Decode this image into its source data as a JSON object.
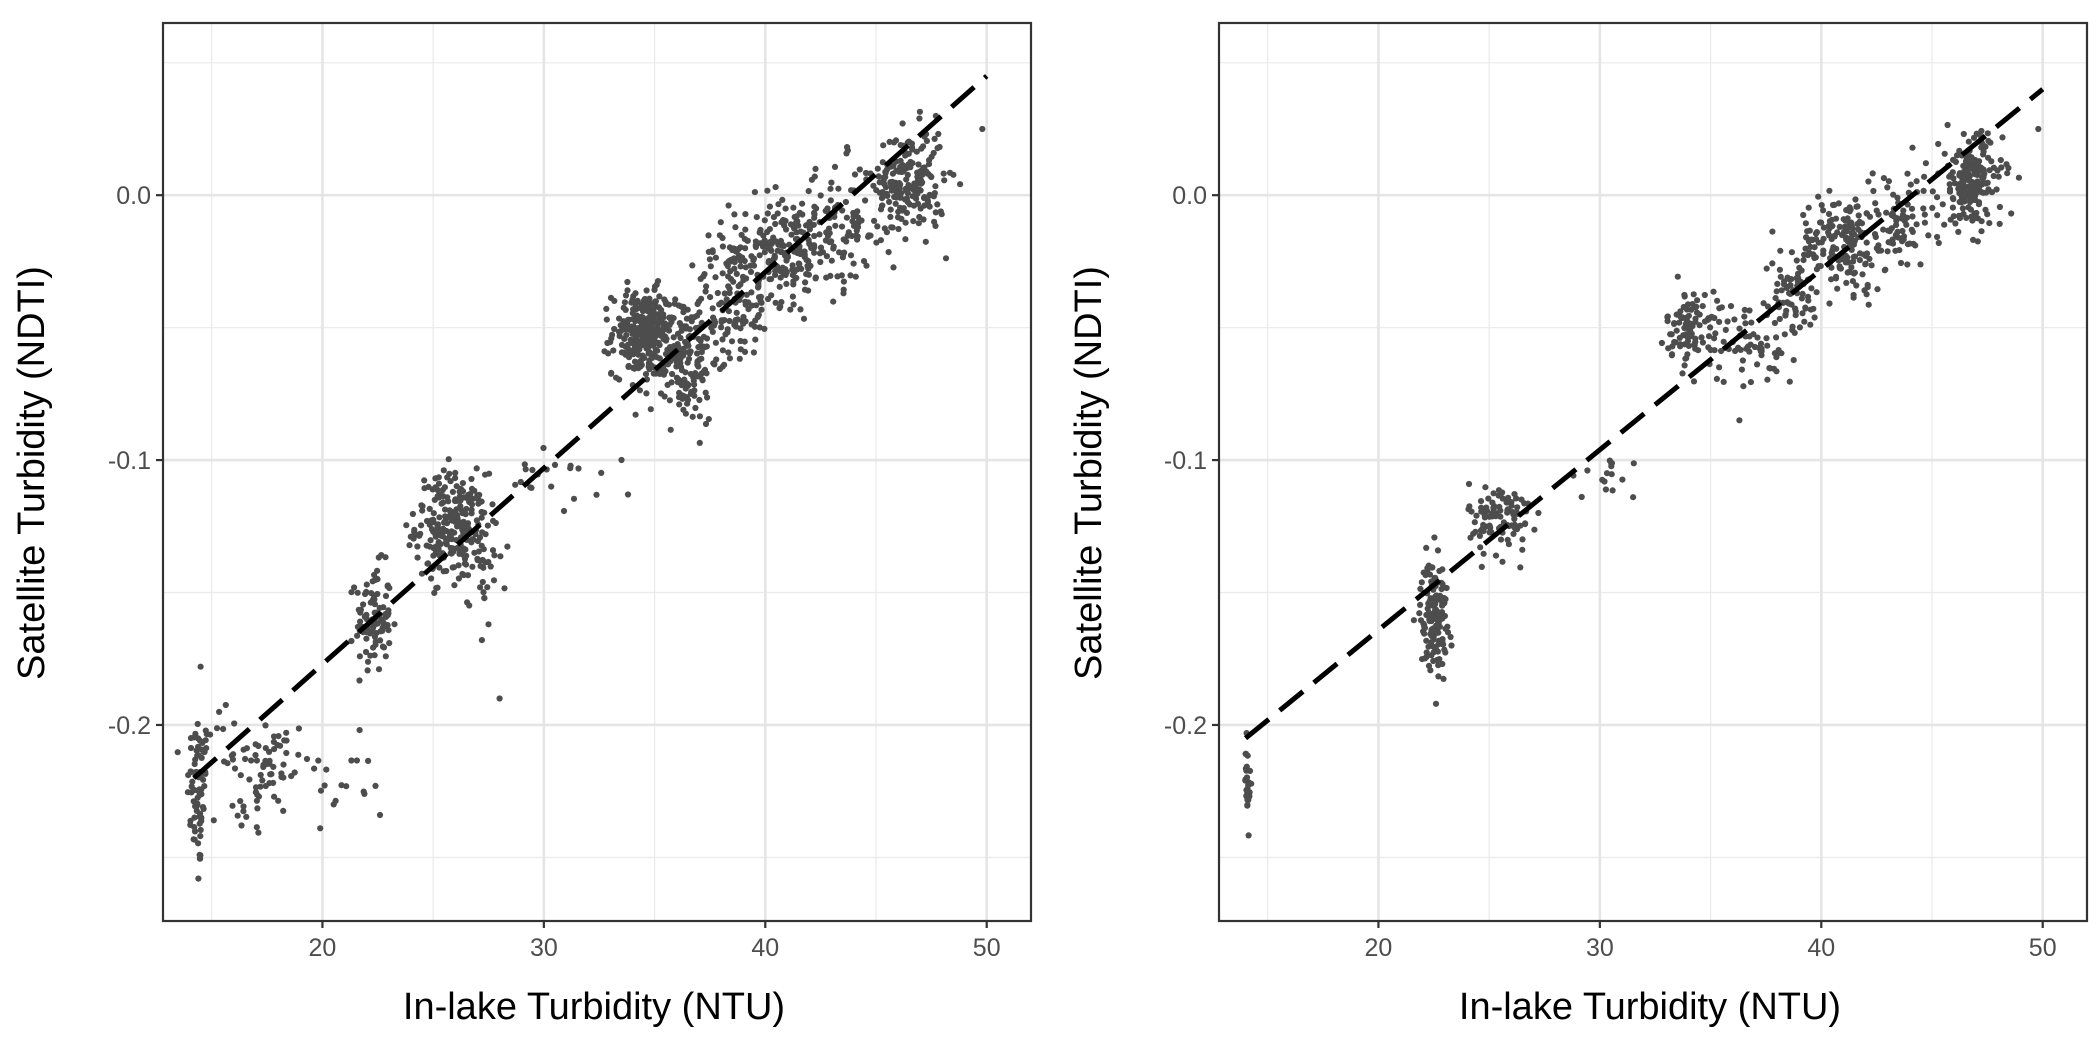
{
  "figure": {
    "panels": [
      {
        "xlabel": "In-lake Turbidity (NTU)",
        "ylabel": "Satellite Turbidity (NDTI)"
      },
      {
        "xlabel": "In-lake Turbidity (NTU)",
        "ylabel": "Satellite Turbidity (NDTI)"
      }
    ]
  },
  "chart_data": [
    {
      "type": "scatter",
      "title": "",
      "xlabel": "In-lake Turbidity (NTU)",
      "ylabel": "Satellite Turbidity (NDTI)",
      "xlim": [
        12.8,
        52.0
      ],
      "ylim": [
        -0.274,
        0.065
      ],
      "x_ticks": [
        20,
        30,
        40,
        50
      ],
      "y_ticks": [
        -0.2,
        -0.1,
        0.0
      ],
      "x_tick_labels": [
        "20",
        "30",
        "40",
        "50"
      ],
      "y_tick_labels": [
        "-0.2",
        "-0.1",
        "0.0"
      ],
      "grid": true,
      "point_color": "#4d4d4d",
      "clusters": [
        {
          "x": 14.4,
          "y": -0.225,
          "sx": 0.25,
          "sy": 0.015,
          "n": 70
        },
        {
          "x": 15.3,
          "y": -0.205,
          "sx": 0.5,
          "sy": 0.008,
          "n": 12
        },
        {
          "x": 17.5,
          "y": -0.215,
          "sx": 1.0,
          "sy": 0.01,
          "n": 60
        },
        {
          "x": 16.8,
          "y": -0.232,
          "sx": 0.4,
          "sy": 0.005,
          "n": 10
        },
        {
          "x": 21.0,
          "y": -0.222,
          "sx": 1.0,
          "sy": 0.006,
          "n": 14
        },
        {
          "x": 22.3,
          "y": -0.16,
          "sx": 0.4,
          "sy": 0.01,
          "n": 100
        },
        {
          "x": 25.8,
          "y": -0.125,
          "sx": 0.8,
          "sy": 0.01,
          "n": 230
        },
        {
          "x": 27.2,
          "y": -0.135,
          "sx": 0.6,
          "sy": 0.012,
          "n": 40
        },
        {
          "x": 30.5,
          "y": -0.108,
          "sx": 1.0,
          "sy": 0.006,
          "n": 20
        },
        {
          "x": 34.5,
          "y": -0.052,
          "sx": 0.7,
          "sy": 0.008,
          "n": 270
        },
        {
          "x": 36.3,
          "y": -0.062,
          "sx": 0.8,
          "sy": 0.012,
          "n": 170
        },
        {
          "x": 38.5,
          "y": -0.04,
          "sx": 0.9,
          "sy": 0.012,
          "n": 120
        },
        {
          "x": 40.8,
          "y": -0.02,
          "sx": 1.2,
          "sy": 0.01,
          "n": 220
        },
        {
          "x": 43.5,
          "y": -0.012,
          "sx": 1.0,
          "sy": 0.012,
          "n": 90
        },
        {
          "x": 46.5,
          "y": 0.005,
          "sx": 0.8,
          "sy": 0.01,
          "n": 200
        }
      ],
      "extra_points": [
        [
          33.8,
          -0.113
        ],
        [
          28.0,
          -0.19
        ],
        [
          27.5,
          -0.162
        ],
        [
          14.4,
          -0.258
        ],
        [
          14.5,
          -0.178
        ],
        [
          49.8,
          0.025
        ],
        [
          19.9,
          -0.239
        ],
        [
          22.6,
          -0.234
        ]
      ],
      "trend_line": {
        "x": [
          14.2,
          50.0
        ],
        "y": [
          -0.22,
          0.045
        ],
        "style": "dashed",
        "color": "#000000"
      }
    },
    {
      "type": "scatter",
      "title": "",
      "xlabel": "In-lake Turbidity (NTU)",
      "ylabel": "Satellite Turbidity (NDTI)",
      "xlim": [
        12.8,
        52.0
      ],
      "ylim": [
        -0.274,
        0.065
      ],
      "x_ticks": [
        20,
        30,
        40,
        50
      ],
      "y_ticks": [
        -0.2,
        -0.1,
        0.0
      ],
      "x_tick_labels": [
        "20",
        "30",
        "40",
        "50"
      ],
      "y_tick_labels": [
        "-0.2",
        "-0.1",
        "0.0"
      ],
      "grid": true,
      "point_color": "#4d4d4d",
      "clusters": [
        {
          "x": 14.1,
          "y": -0.222,
          "sx": 0.06,
          "sy": 0.008,
          "n": 28
        },
        {
          "x": 22.5,
          "y": -0.158,
          "sx": 0.3,
          "sy": 0.01,
          "n": 150
        },
        {
          "x": 25.5,
          "y": -0.122,
          "sx": 0.7,
          "sy": 0.007,
          "n": 100
        },
        {
          "x": 30.0,
          "y": -0.105,
          "sx": 1.0,
          "sy": 0.005,
          "n": 15
        },
        {
          "x": 34.2,
          "y": -0.05,
          "sx": 0.6,
          "sy": 0.007,
          "n": 100
        },
        {
          "x": 36.8,
          "y": -0.057,
          "sx": 1.0,
          "sy": 0.008,
          "n": 50
        },
        {
          "x": 38.5,
          "y": -0.04,
          "sx": 0.8,
          "sy": 0.008,
          "n": 70
        },
        {
          "x": 41.0,
          "y": -0.018,
          "sx": 1.0,
          "sy": 0.009,
          "n": 180
        },
        {
          "x": 43.5,
          "y": -0.01,
          "sx": 0.9,
          "sy": 0.01,
          "n": 70
        },
        {
          "x": 46.8,
          "y": 0.005,
          "sx": 0.7,
          "sy": 0.009,
          "n": 190
        }
      ],
      "extra_points": [
        [
          36.3,
          -0.085
        ],
        [
          31.5,
          -0.114
        ],
        [
          49.8,
          0.025
        ],
        [
          23.3,
          -0.17
        ],
        [
          22.6,
          -0.192
        ],
        [
          38.8,
          -0.052
        ]
      ],
      "trend_line": {
        "x": [
          14.0,
          50.0
        ],
        "y": [
          -0.205,
          0.04
        ],
        "style": "dashed",
        "color": "#000000"
      }
    }
  ]
}
